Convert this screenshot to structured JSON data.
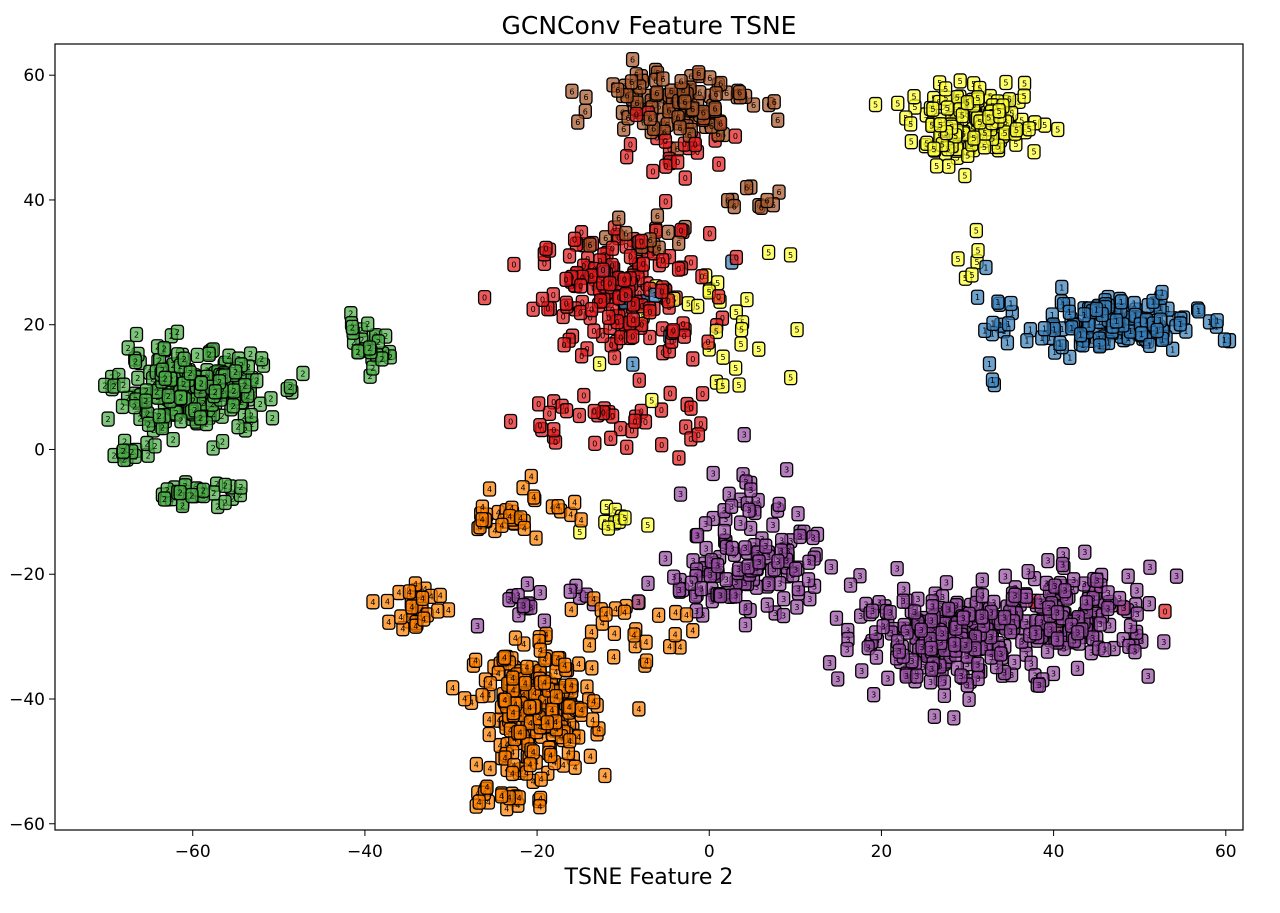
{
  "chart_data": {
    "type": "scatter",
    "title": "GCNConv Feature TSNE",
    "xlabel": "TSNE Feature 2",
    "ylabel": "",
    "xlim": [
      -76,
      62
    ],
    "ylim": [
      -61,
      65
    ],
    "xticks": [
      -60,
      -40,
      -20,
      0,
      20,
      40,
      60
    ],
    "yticks": [
      -60,
      -40,
      -20,
      0,
      20,
      40,
      60
    ],
    "xtick_labels": [
      "−60",
      "−40",
      "−20",
      "0",
      "20",
      "40",
      "60"
    ],
    "ytick_labels": [
      "−60",
      "−40",
      "−20",
      "0",
      "20",
      "40",
      "60"
    ],
    "grid": false,
    "legend": "none",
    "marker": "rounded square box labelled with class id",
    "classes": [
      {
        "label": "0",
        "color": "#e41a1c",
        "clusters": [
          {
            "center": [
              -10,
              25
            ],
            "spread": [
              9,
              9
            ],
            "n": 170
          },
          {
            "center": [
              -3,
              50
            ],
            "spread": [
              7,
              6
            ],
            "n": 25
          },
          {
            "center": [
              -12,
              5
            ],
            "spread": [
              10,
              6
            ],
            "n": 40
          },
          {
            "center": [
              40,
              -25
            ],
            "spread": [
              10,
              4
            ],
            "n": 6
          }
        ]
      },
      {
        "label": "1",
        "color": "#377eb8",
        "clusters": [
          {
            "center": [
              47,
              20
            ],
            "spread": [
              9,
              4
            ],
            "n": 150
          },
          {
            "center": [
              33,
              22
            ],
            "spread": [
              3,
              8
            ],
            "n": 12
          },
          {
            "center": [
              -10,
              25
            ],
            "spread": [
              10,
              8
            ],
            "n": 8
          }
        ]
      },
      {
        "label": "2",
        "color": "#4daf4a",
        "clusters": [
          {
            "center": [
              -60,
              9
            ],
            "spread": [
              8,
              6
            ],
            "n": 240
          },
          {
            "center": [
              -40,
              16
            ],
            "spread": [
              3,
              4
            ],
            "n": 25
          },
          {
            "center": [
              -60,
              -7
            ],
            "spread": [
              5,
              1.5
            ],
            "n": 30
          },
          {
            "center": [
              -68,
              -1
            ],
            "spread": [
              1.5,
              2
            ],
            "n": 10
          }
        ]
      },
      {
        "label": "3",
        "color": "#984ea3",
        "clusters": [
          {
            "center": [
              28,
              -30
            ],
            "spread": [
              10,
              7
            ],
            "n": 230
          },
          {
            "center": [
              42,
              -27
            ],
            "spread": [
              9,
              7
            ],
            "n": 170
          },
          {
            "center": [
              4,
              -20
            ],
            "spread": [
              9,
              6
            ],
            "n": 110
          },
          {
            "center": [
              -20,
              -25
            ],
            "spread": [
              6,
              3
            ],
            "n": 20
          },
          {
            "center": [
              5,
              -10
            ],
            "spread": [
              6,
              8
            ],
            "n": 35
          }
        ]
      },
      {
        "label": "4",
        "color": "#ff7f00",
        "clusters": [
          {
            "center": [
              -20,
              -42
            ],
            "spread": [
              6,
              9
            ],
            "n": 260
          },
          {
            "center": [
              -34,
              -25
            ],
            "spread": [
              3,
              4
            ],
            "n": 30
          },
          {
            "center": [
              -22,
              -10
            ],
            "spread": [
              6,
              4
            ],
            "n": 35
          },
          {
            "center": [
              -8,
              -28
            ],
            "spread": [
              6,
              6
            ],
            "n": 25
          },
          {
            "center": [
              -24,
              -56
            ],
            "spread": [
              6,
              2
            ],
            "n": 20
          }
        ]
      },
      {
        "label": "5",
        "color": "#ffff33",
        "clusters": [
          {
            "center": [
              31,
              52
            ],
            "spread": [
              7,
              5
            ],
            "n": 150
          },
          {
            "center": [
              1,
              20
            ],
            "spread": [
              8,
              12
            ],
            "n": 30
          },
          {
            "center": [
              30,
              30
            ],
            "spread": [
              1.5,
              4
            ],
            "n": 6
          },
          {
            "center": [
              -12,
              -11
            ],
            "spread": [
              4,
              2
            ],
            "n": 10
          }
        ]
      },
      {
        "label": "6",
        "color": "#a65628",
        "clusters": [
          {
            "center": [
              -4,
              56
            ],
            "spread": [
              8,
              5
            ],
            "n": 110
          },
          {
            "center": [
              -8,
              35
            ],
            "spread": [
              6,
              3
            ],
            "n": 15
          },
          {
            "center": [
              4,
              40
            ],
            "spread": [
              5,
              4
            ],
            "n": 10
          }
        ]
      }
    ]
  }
}
